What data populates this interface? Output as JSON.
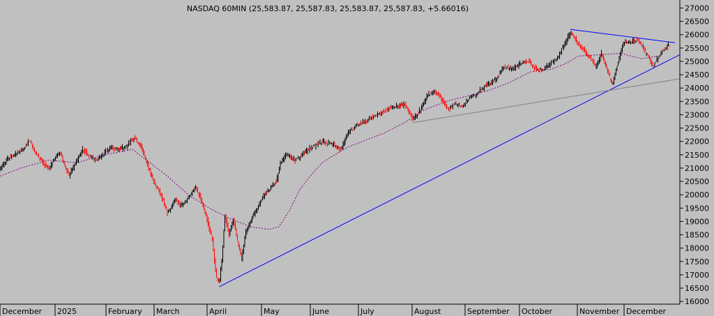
{
  "chart_data": {
    "type": "candlestick",
    "title": "NASDAQ 60MIN (25,583.87, 25,587.83, 25,583.87, 25,587.83, +5.66016)",
    "xlabel": "",
    "ylabel": "",
    "ylim": [
      15900,
      27300
    ],
    "y_ticks": [
      16000,
      16500,
      17000,
      17500,
      18000,
      18500,
      19000,
      19500,
      20000,
      20500,
      21000,
      21500,
      22000,
      22500,
      23000,
      23500,
      24000,
      24500,
      25000,
      25500,
      26000,
      26500,
      27000
    ],
    "x_ticks": [
      "December",
      "2025",
      "February",
      "March",
      "April",
      "May",
      "June",
      "July",
      "August",
      "September",
      "October",
      "November",
      "December"
    ],
    "x_range": [
      0,
      970
    ],
    "x_tick_positions": [
      0,
      79,
      152,
      221,
      297,
      375,
      445,
      514,
      591,
      667,
      745,
      828,
      895
    ],
    "grid": false,
    "legend": "none",
    "colors": {
      "up": "#000000",
      "down": "#ff0000",
      "trend": "#0000ff",
      "ma": "#800080",
      "support": "#808080",
      "background": "#c0c0c0"
    },
    "price_path": [
      [
        0,
        20900
      ],
      [
        10,
        21300
      ],
      [
        22,
        21500
      ],
      [
        35,
        21700
      ],
      [
        44,
        22050
      ],
      [
        52,
        21600
      ],
      [
        62,
        21200
      ],
      [
        72,
        21000
      ],
      [
        80,
        21350
      ],
      [
        88,
        21550
      ],
      [
        100,
        20700
      ],
      [
        110,
        21200
      ],
      [
        120,
        21700
      ],
      [
        132,
        21400
      ],
      [
        142,
        21300
      ],
      [
        152,
        21600
      ],
      [
        162,
        21750
      ],
      [
        172,
        21700
      ],
      [
        182,
        21800
      ],
      [
        194,
        22150
      ],
      [
        204,
        21800
      ],
      [
        212,
        21200
      ],
      [
        222,
        20500
      ],
      [
        232,
        20000
      ],
      [
        242,
        19300
      ],
      [
        252,
        19800
      ],
      [
        262,
        19600
      ],
      [
        270,
        19800
      ],
      [
        282,
        20300
      ],
      [
        290,
        19800
      ],
      [
        298,
        19100
      ],
      [
        306,
        18300
      ],
      [
        311,
        17000
      ],
      [
        316,
        16650
      ],
      [
        320,
        17700
      ],
      [
        324,
        19200
      ],
      [
        330,
        18500
      ],
      [
        336,
        19100
      ],
      [
        342,
        18300
      ],
      [
        348,
        17600
      ],
      [
        354,
        18600
      ],
      [
        362,
        19100
      ],
      [
        372,
        19600
      ],
      [
        380,
        20000
      ],
      [
        388,
        20200
      ],
      [
        398,
        20500
      ],
      [
        404,
        21200
      ],
      [
        412,
        21500
      ],
      [
        425,
        21300
      ],
      [
        438,
        21600
      ],
      [
        450,
        21800
      ],
      [
        462,
        22000
      ],
      [
        478,
        21900
      ],
      [
        490,
        21700
      ],
      [
        500,
        22300
      ],
      [
        512,
        22600
      ],
      [
        528,
        22800
      ],
      [
        542,
        23000
      ],
      [
        556,
        23200
      ],
      [
        570,
        23300
      ],
      [
        582,
        23400
      ],
      [
        594,
        22800
      ],
      [
        604,
        23200
      ],
      [
        614,
        23700
      ],
      [
        624,
        23900
      ],
      [
        634,
        23600
      ],
      [
        644,
        23200
      ],
      [
        654,
        23400
      ],
      [
        664,
        23300
      ],
      [
        674,
        23600
      ],
      [
        686,
        23800
      ],
      [
        698,
        24100
      ],
      [
        712,
        24300
      ],
      [
        724,
        24800
      ],
      [
        736,
        24700
      ],
      [
        748,
        24900
      ],
      [
        760,
        25000
      ],
      [
        770,
        24700
      ],
      [
        780,
        24700
      ],
      [
        790,
        24900
      ],
      [
        800,
        25100
      ],
      [
        810,
        25600
      ],
      [
        820,
        26100
      ],
      [
        830,
        25700
      ],
      [
        840,
        25400
      ],
      [
        848,
        25100
      ],
      [
        856,
        24800
      ],
      [
        864,
        25300
      ],
      [
        872,
        24700
      ],
      [
        880,
        24100
      ],
      [
        888,
        25000
      ],
      [
        896,
        25700
      ],
      [
        906,
        25750
      ],
      [
        916,
        25800
      ],
      [
        924,
        25500
      ],
      [
        932,
        25100
      ],
      [
        938,
        24800
      ],
      [
        944,
        25100
      ],
      [
        952,
        25400
      ],
      [
        960,
        25588
      ]
    ],
    "ma_path": [
      [
        0,
        20700
      ],
      [
        30,
        21000
      ],
      [
        70,
        21300
      ],
      [
        110,
        21200
      ],
      [
        150,
        21500
      ],
      [
        190,
        21700
      ],
      [
        210,
        21300
      ],
      [
        240,
        20700
      ],
      [
        270,
        20000
      ],
      [
        300,
        19500
      ],
      [
        330,
        19100
      ],
      [
        360,
        18800
      ],
      [
        385,
        18700
      ],
      [
        400,
        18800
      ],
      [
        415,
        19400
      ],
      [
        430,
        20200
      ],
      [
        445,
        20700
      ],
      [
        462,
        21200
      ],
      [
        480,
        21500
      ],
      [
        500,
        21800
      ],
      [
        520,
        22000
      ],
      [
        550,
        22300
      ],
      [
        580,
        22700
      ],
      [
        610,
        23200
      ],
      [
        640,
        23500
      ],
      [
        670,
        23700
      ],
      [
        700,
        23900
      ],
      [
        730,
        24200
      ],
      [
        760,
        24600
      ],
      [
        790,
        24700
      ],
      [
        810,
        24900
      ],
      [
        830,
        25200
      ],
      [
        860,
        25250
      ],
      [
        890,
        25300
      ],
      [
        920,
        25100
      ],
      [
        945,
        25200
      ]
    ],
    "trendlines": [
      {
        "kind": "rising-support",
        "from": [
          314,
          16550
        ],
        "to": [
          975,
          25250
        ]
      },
      {
        "kind": "falling-resistance",
        "from": [
          818,
          26200
        ],
        "to": [
          968,
          25700
        ]
      },
      {
        "kind": "rising-support-2",
        "from": [
          592,
          22700
        ],
        "to": [
          975,
          24350
        ]
      }
    ]
  }
}
